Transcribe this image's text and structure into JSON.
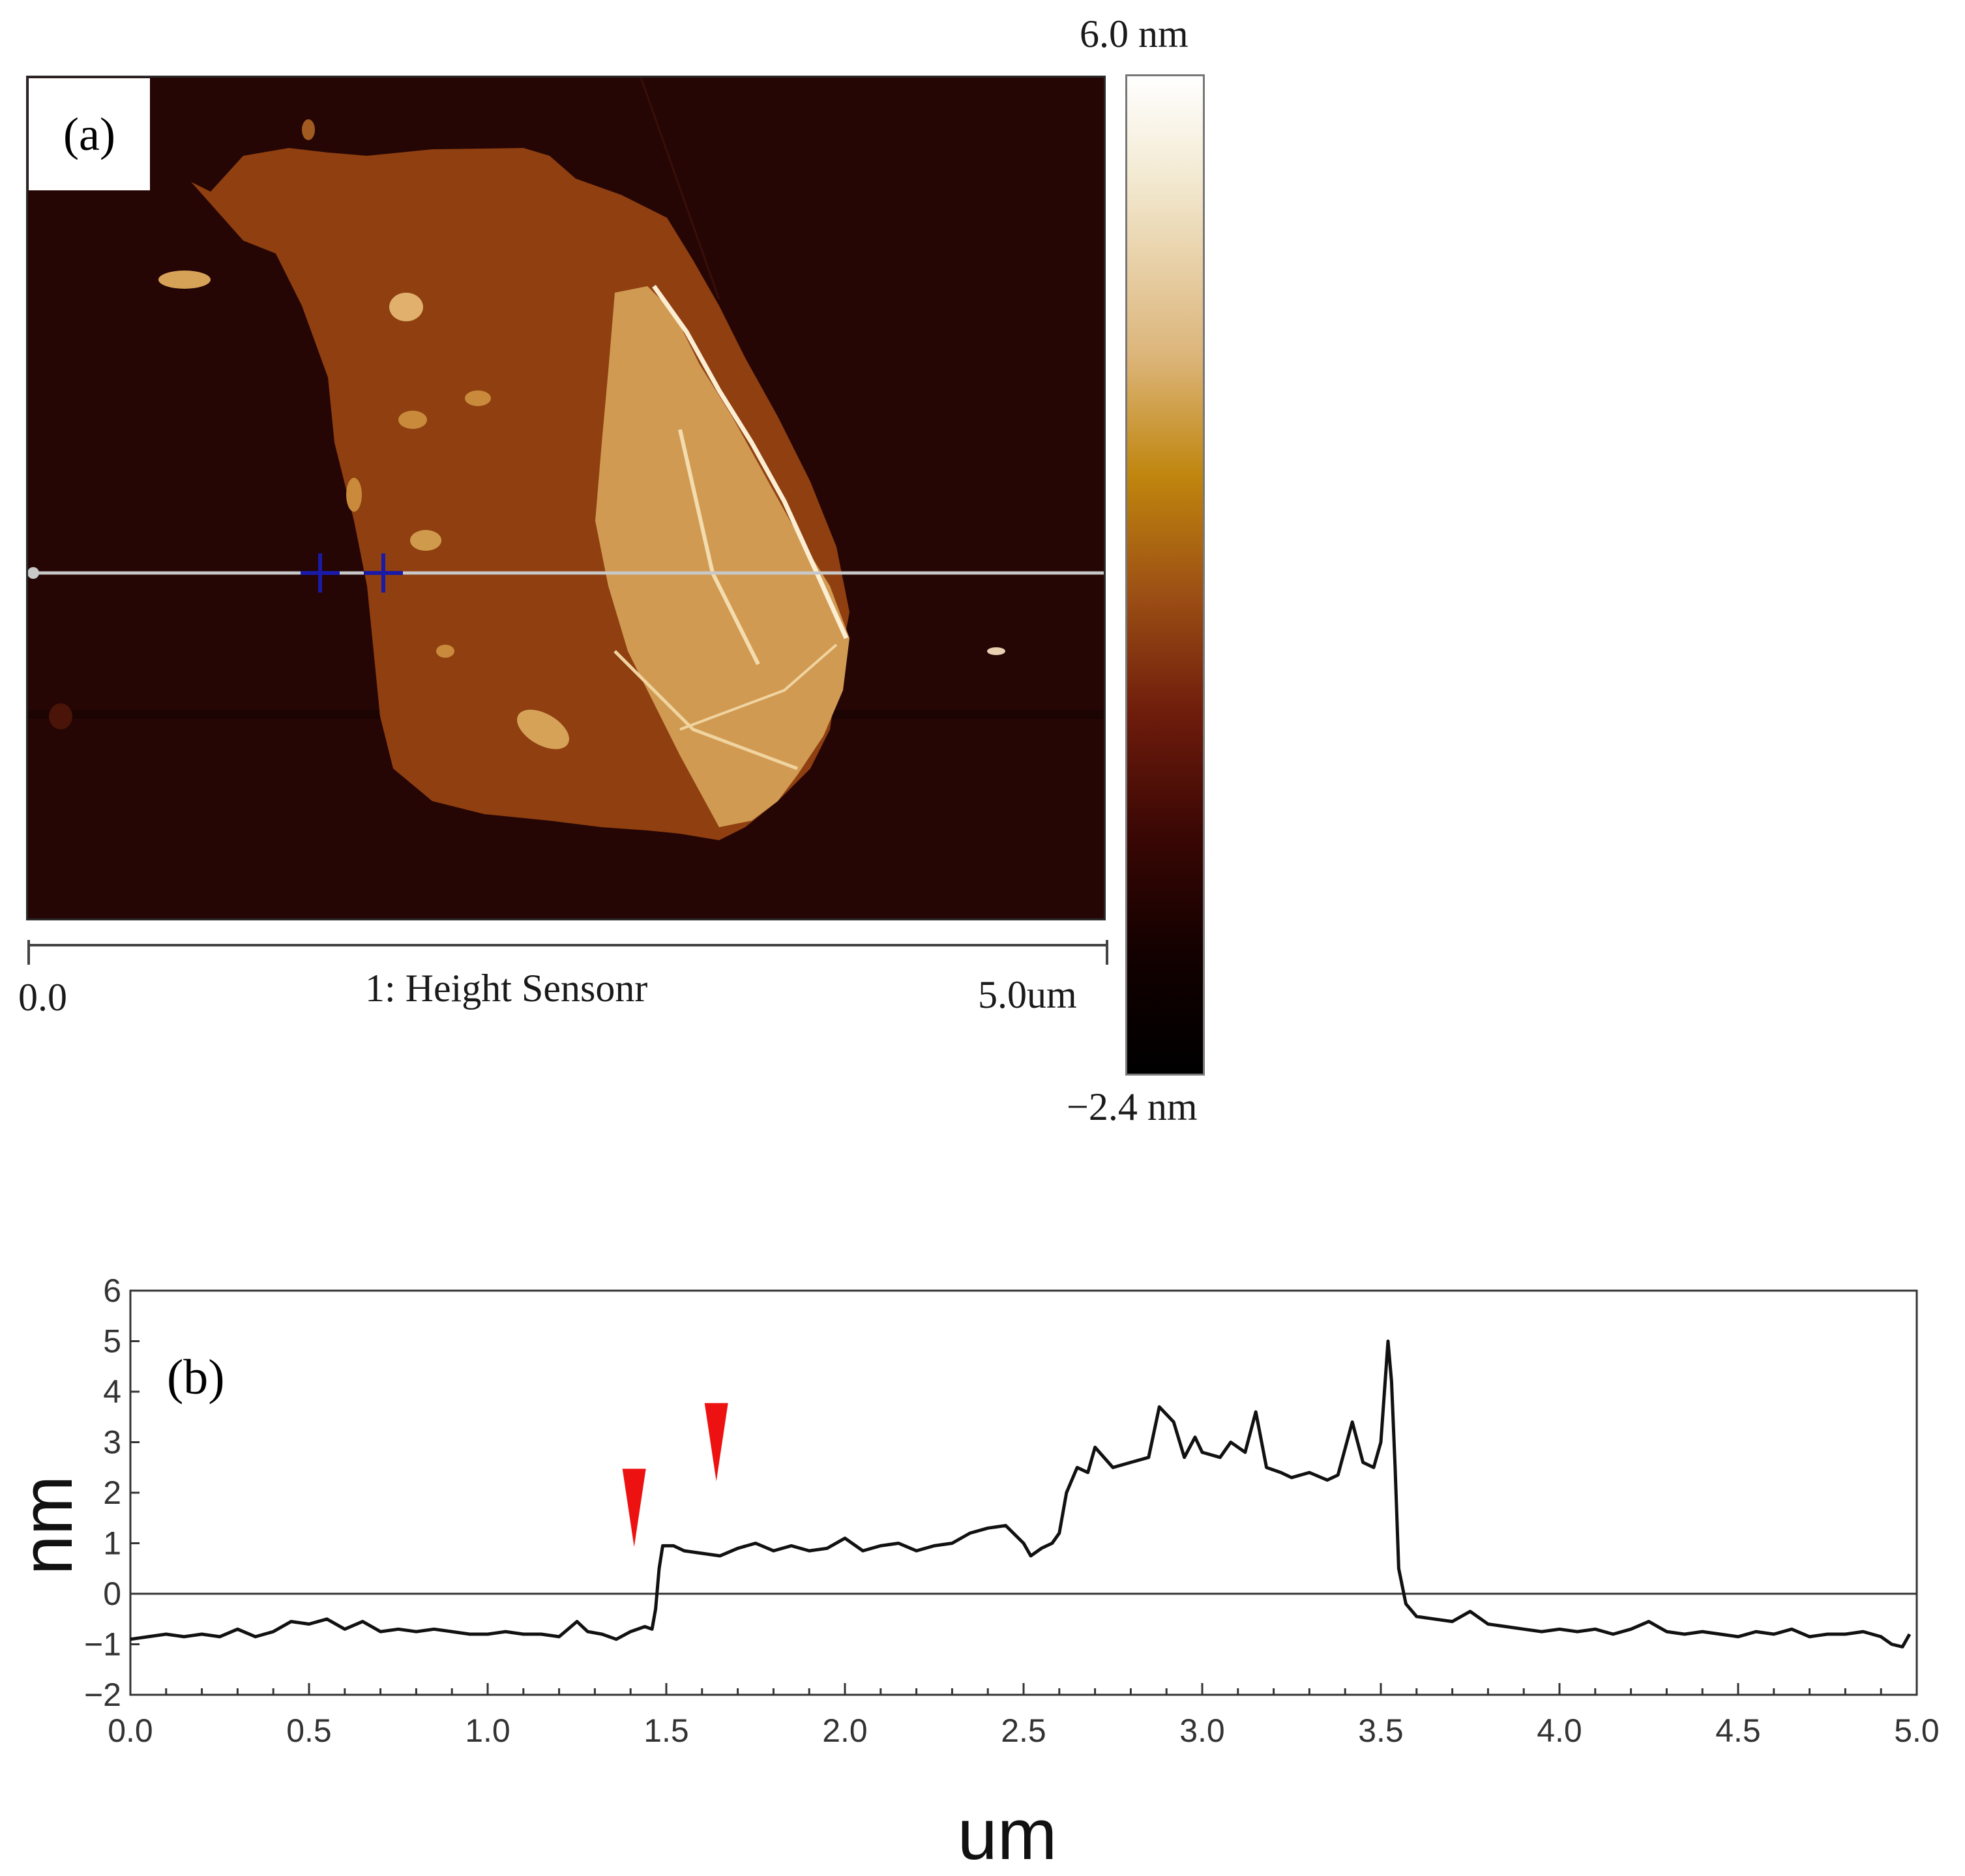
{
  "panel_a": {
    "label": "(a)",
    "scale_start": "0.0",
    "scale_end": "5.0um",
    "channel_label": "1: Height Sensonr",
    "colorbar_max": "6.0 nm",
    "colorbar_min": "−2.4 nm",
    "colors": {
      "background": "#250605",
      "flake": "#8f3f10",
      "bilayer": "#d19a52",
      "profile_line": "#c8c8c8",
      "cursor_markers": "#1a1aa8"
    }
  },
  "chart_data": {
    "type": "line",
    "panel_label": "(b)",
    "title": "",
    "xlabel": "um",
    "ylabel": "nm",
    "xlim": [
      0.0,
      5.0
    ],
    "ylim": [
      -2,
      6
    ],
    "xticks": [
      "0.0",
      "0.5",
      "1.0",
      "1.5",
      "2.0",
      "2.5",
      "3.0",
      "3.5",
      "4.0",
      "4.5",
      "5.0"
    ],
    "yticks": [
      "6",
      "5",
      "4",
      "3",
      "2",
      "1",
      "0",
      "−1",
      "−2"
    ],
    "baseline": 0,
    "markers": [
      {
        "name": "step-marker-1",
        "x": 1.41,
        "y": 1.7,
        "color": "#ee1111"
      },
      {
        "name": "step-marker-2",
        "x": 1.64,
        "y": 3.0,
        "color": "#ee1111"
      }
    ],
    "series": [
      {
        "name": "height-profile",
        "color": "#111111",
        "points": [
          [
            0.0,
            -0.9
          ],
          [
            0.05,
            -0.85
          ],
          [
            0.1,
            -0.8
          ],
          [
            0.15,
            -0.85
          ],
          [
            0.2,
            -0.8
          ],
          [
            0.25,
            -0.85
          ],
          [
            0.3,
            -0.7
          ],
          [
            0.35,
            -0.85
          ],
          [
            0.4,
            -0.75
          ],
          [
            0.45,
            -0.55
          ],
          [
            0.5,
            -0.6
          ],
          [
            0.55,
            -0.5
          ],
          [
            0.6,
            -0.7
          ],
          [
            0.65,
            -0.55
          ],
          [
            0.7,
            -0.75
          ],
          [
            0.75,
            -0.7
          ],
          [
            0.8,
            -0.75
          ],
          [
            0.85,
            -0.7
          ],
          [
            0.9,
            -0.75
          ],
          [
            0.95,
            -0.8
          ],
          [
            1.0,
            -0.8
          ],
          [
            1.05,
            -0.75
          ],
          [
            1.1,
            -0.8
          ],
          [
            1.15,
            -0.8
          ],
          [
            1.2,
            -0.85
          ],
          [
            1.25,
            -0.55
          ],
          [
            1.28,
            -0.75
          ],
          [
            1.32,
            -0.8
          ],
          [
            1.36,
            -0.9
          ],
          [
            1.4,
            -0.75
          ],
          [
            1.44,
            -0.65
          ],
          [
            1.46,
            -0.7
          ],
          [
            1.47,
            -0.3
          ],
          [
            1.48,
            0.5
          ],
          [
            1.49,
            0.95
          ],
          [
            1.52,
            0.95
          ],
          [
            1.55,
            0.85
          ],
          [
            1.6,
            0.8
          ],
          [
            1.65,
            0.75
          ],
          [
            1.7,
            0.9
          ],
          [
            1.75,
            1.0
          ],
          [
            1.8,
            0.85
          ],
          [
            1.85,
            0.95
          ],
          [
            1.9,
            0.85
          ],
          [
            1.95,
            0.9
          ],
          [
            2.0,
            1.1
          ],
          [
            2.05,
            0.85
          ],
          [
            2.1,
            0.95
          ],
          [
            2.15,
            1.0
          ],
          [
            2.2,
            0.85
          ],
          [
            2.25,
            0.95
          ],
          [
            2.3,
            1.0
          ],
          [
            2.35,
            1.2
          ],
          [
            2.4,
            1.3
          ],
          [
            2.45,
            1.35
          ],
          [
            2.5,
            1.0
          ],
          [
            2.52,
            0.75
          ],
          [
            2.55,
            0.9
          ],
          [
            2.58,
            1.0
          ],
          [
            2.6,
            1.2
          ],
          [
            2.62,
            2.0
          ],
          [
            2.65,
            2.5
          ],
          [
            2.68,
            2.4
          ],
          [
            2.7,
            2.9
          ],
          [
            2.75,
            2.5
          ],
          [
            2.8,
            2.6
          ],
          [
            2.85,
            2.7
          ],
          [
            2.88,
            3.7
          ],
          [
            2.92,
            3.4
          ],
          [
            2.95,
            2.7
          ],
          [
            2.98,
            3.1
          ],
          [
            3.0,
            2.8
          ],
          [
            3.05,
            2.7
          ],
          [
            3.08,
            3.0
          ],
          [
            3.12,
            2.8
          ],
          [
            3.15,
            3.6
          ],
          [
            3.18,
            2.5
          ],
          [
            3.22,
            2.4
          ],
          [
            3.25,
            2.3
          ],
          [
            3.3,
            2.4
          ],
          [
            3.35,
            2.25
          ],
          [
            3.38,
            2.35
          ],
          [
            3.42,
            3.4
          ],
          [
            3.45,
            2.6
          ],
          [
            3.48,
            2.5
          ],
          [
            3.5,
            3.0
          ],
          [
            3.52,
            5.0
          ],
          [
            3.53,
            4.2
          ],
          [
            3.54,
            2.5
          ],
          [
            3.55,
            0.5
          ],
          [
            3.57,
            -0.2
          ],
          [
            3.6,
            -0.45
          ],
          [
            3.65,
            -0.5
          ],
          [
            3.7,
            -0.55
          ],
          [
            3.75,
            -0.35
          ],
          [
            3.8,
            -0.6
          ],
          [
            3.85,
            -0.65
          ],
          [
            3.9,
            -0.7
          ],
          [
            3.95,
            -0.75
          ],
          [
            4.0,
            -0.7
          ],
          [
            4.05,
            -0.75
          ],
          [
            4.1,
            -0.7
          ],
          [
            4.15,
            -0.8
          ],
          [
            4.2,
            -0.7
          ],
          [
            4.25,
            -0.55
          ],
          [
            4.3,
            -0.75
          ],
          [
            4.35,
            -0.8
          ],
          [
            4.4,
            -0.75
          ],
          [
            4.45,
            -0.8
          ],
          [
            4.5,
            -0.85
          ],
          [
            4.55,
            -0.75
          ],
          [
            4.6,
            -0.8
          ],
          [
            4.65,
            -0.7
          ],
          [
            4.7,
            -0.85
          ],
          [
            4.75,
            -0.8
          ],
          [
            4.8,
            -0.8
          ],
          [
            4.85,
            -0.75
          ],
          [
            4.9,
            -0.85
          ],
          [
            4.93,
            -1.0
          ],
          [
            4.96,
            -1.05
          ],
          [
            4.98,
            -0.8
          ]
        ]
      }
    ]
  }
}
